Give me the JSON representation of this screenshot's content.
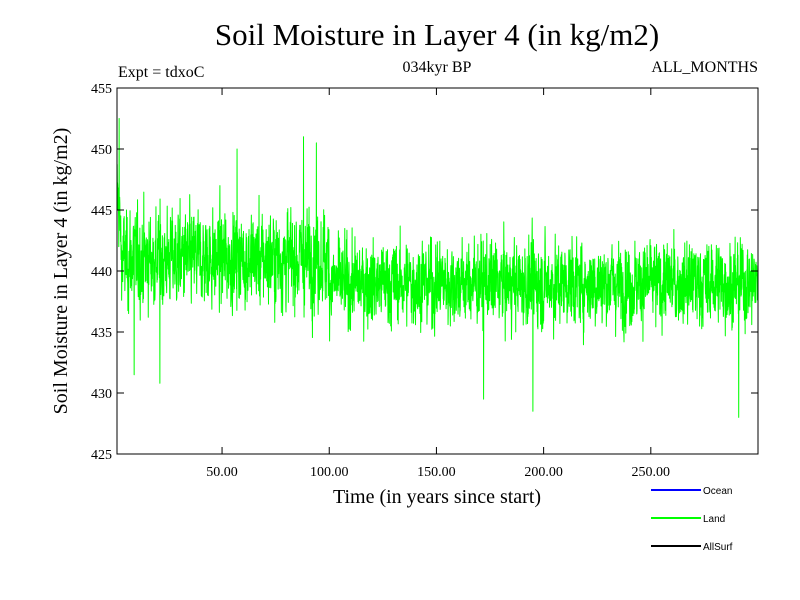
{
  "chart_data": {
    "type": "line",
    "title": "Soil Moisture in Layer 4 (in kg/m2)",
    "subtitle_left": "Expt = tdxoC",
    "subtitle_center": "034kyr BP",
    "subtitle_right": "ALL_MONTHS",
    "xlabel": "Time (in years since start)",
    "ylabel": "Soil Moisture in Layer 4 (in kg/m2)",
    "xlim": [
      1,
      300
    ],
    "ylim": [
      425,
      455
    ],
    "x_ticks": [
      {
        "value": 50,
        "label": "50.00"
      },
      {
        "value": 100,
        "label": "100.00"
      },
      {
        "value": 150,
        "label": "150.00"
      },
      {
        "value": 200,
        "label": "200.00"
      },
      {
        "value": 250,
        "label": "250.00"
      }
    ],
    "y_ticks": [
      {
        "value": 425,
        "label": "425"
      },
      {
        "value": 430,
        "label": "430"
      },
      {
        "value": 435,
        "label": "435"
      },
      {
        "value": 440,
        "label": "440"
      },
      {
        "value": 445,
        "label": "445"
      },
      {
        "value": 450,
        "label": "450"
      },
      {
        "value": 455,
        "label": "455"
      }
    ],
    "series": [
      {
        "name": "Land",
        "color": "#00ff00",
        "sampling": "monthly, plotted at 1/12 year resolution",
        "segments": [
          {
            "x_start": 1,
            "x_end": 3,
            "mean_start": 447,
            "mean_end": 442,
            "spread": 3
          },
          {
            "x_start": 3,
            "x_end": 100,
            "mean_start": 441,
            "mean_end": 441,
            "spread": 4
          },
          {
            "x_start": 100,
            "x_end": 300,
            "mean_start": 439,
            "mean_end": 439,
            "spread": 3.5
          }
        ],
        "peaks": [
          {
            "x": 2,
            "y": 452.5
          },
          {
            "x": 57,
            "y": 450
          },
          {
            "x": 88,
            "y": 451
          },
          {
            "x": 94,
            "y": 450.5
          }
        ],
        "troughs": [
          {
            "x": 9,
            "y": 431.5
          },
          {
            "x": 21,
            "y": 430.8
          },
          {
            "x": 172,
            "y": 429.5
          },
          {
            "x": 195,
            "y": 428.5
          },
          {
            "x": 291,
            "y": 428
          }
        ]
      }
    ],
    "legend": {
      "placement": "bottom-right",
      "entries": [
        {
          "label": "Ocean",
          "color": "#0000ff"
        },
        {
          "label": "Land",
          "color": "#00ff00"
        },
        {
          "label": "AllSurf",
          "color": "#000000"
        }
      ]
    }
  }
}
